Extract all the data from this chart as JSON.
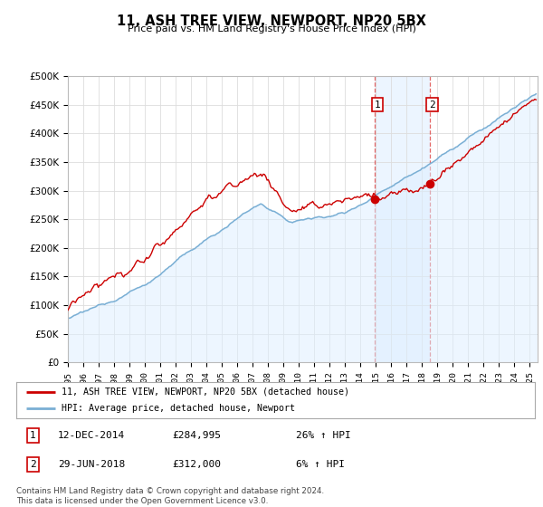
{
  "title": "11, ASH TREE VIEW, NEWPORT, NP20 5BX",
  "subtitle": "Price paid vs. HM Land Registry's House Price Index (HPI)",
  "ylim": [
    0,
    500000
  ],
  "yticks": [
    0,
    50000,
    100000,
    150000,
    200000,
    250000,
    300000,
    350000,
    400000,
    450000,
    500000
  ],
  "xlim_start": 1995.0,
  "xlim_end": 2025.5,
  "bg_color": "#ffffff",
  "grid_color": "#dddddd",
  "red_line_color": "#cc0000",
  "blue_line_color": "#7aafd4",
  "blue_fill_color": "#ddeeff",
  "highlight_color": "#ddeeff",
  "dashed_line_color": "#dd4444",
  "marker1_x": 2014.95,
  "marker1_y": 284995,
  "marker2_x": 2018.5,
  "marker2_y": 312000,
  "legend_label_red": "11, ASH TREE VIEW, NEWPORT, NP20 5BX (detached house)",
  "legend_label_blue": "HPI: Average price, detached house, Newport",
  "annotation1_date": "12-DEC-2014",
  "annotation1_price": "£284,995",
  "annotation1_hpi": "26% ↑ HPI",
  "annotation2_date": "29-JUN-2018",
  "annotation2_price": "£312,000",
  "annotation2_hpi": "6% ↑ HPI",
  "footer": "Contains HM Land Registry data © Crown copyright and database right 2024.\nThis data is licensed under the Open Government Licence v3.0."
}
